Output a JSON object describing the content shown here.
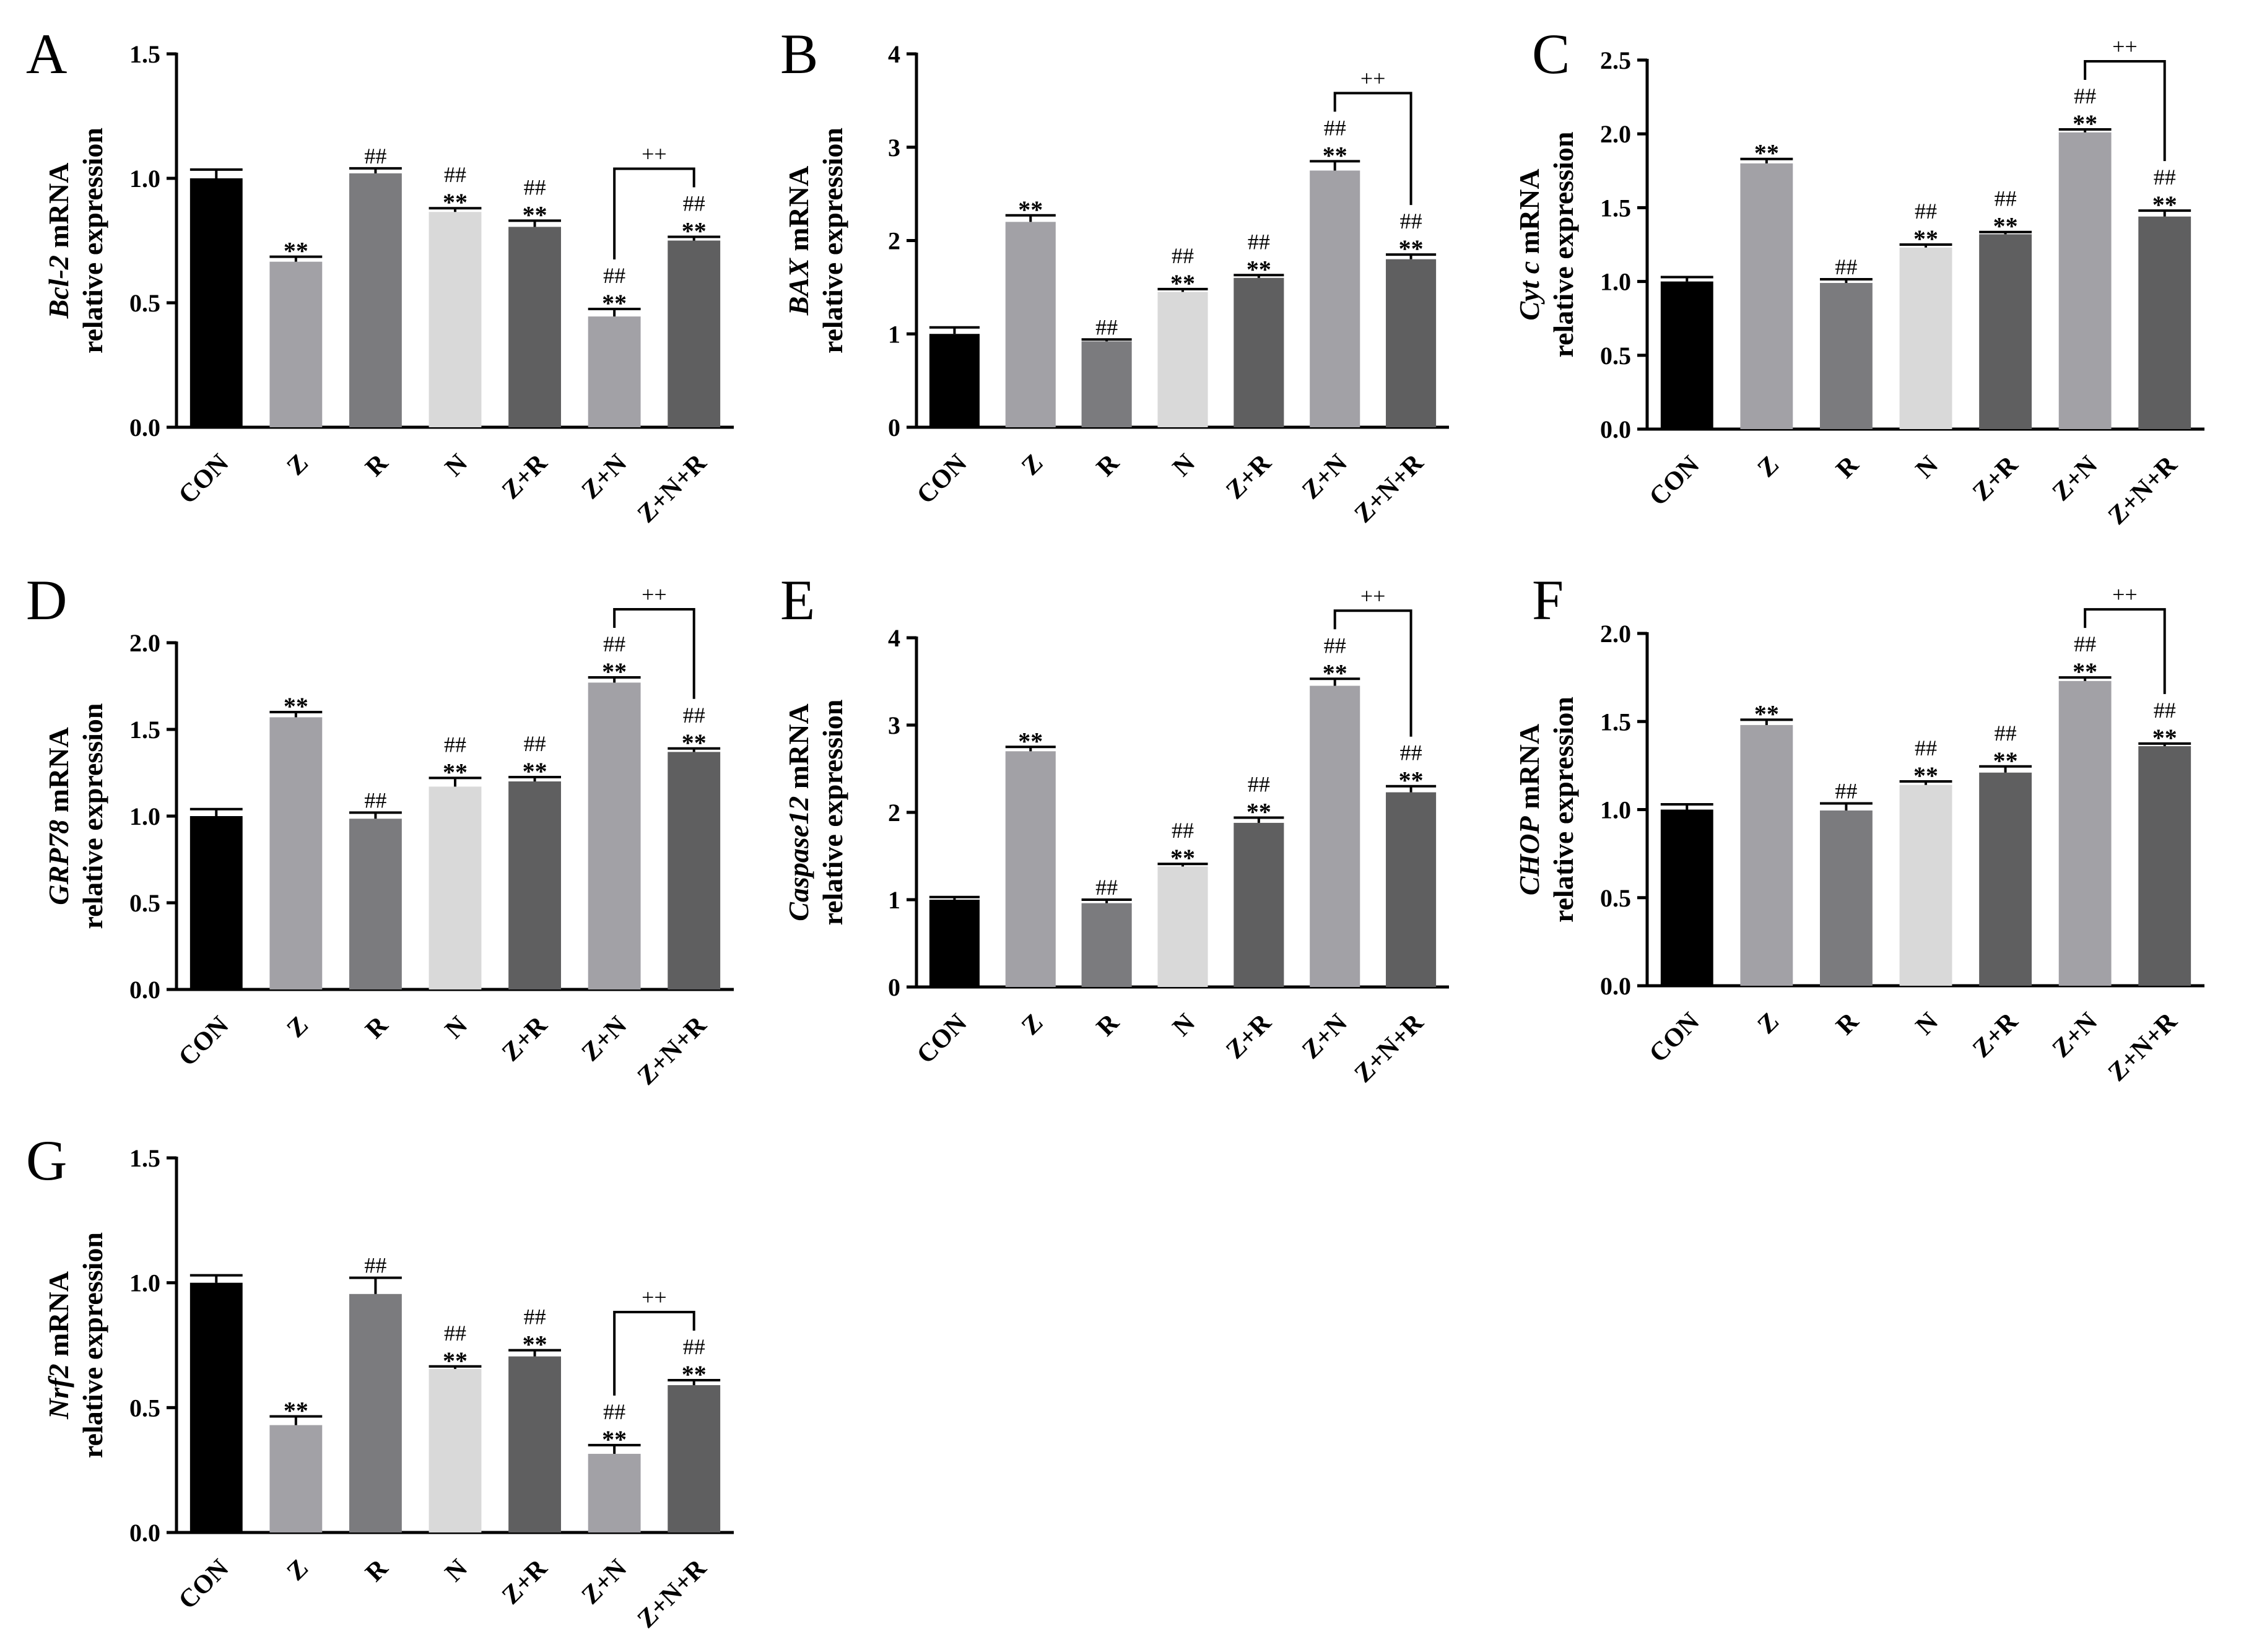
{
  "chart_data": [
    {
      "type": "bar",
      "panel": "A",
      "gene": "Bcl-2",
      "ylabel_suffix": " mRNA",
      "ylabel_line2": "relative expression",
      "categories": [
        "CON",
        "Z",
        "R",
        "N",
        "Z+R",
        "Z+N",
        "Z+N+R"
      ],
      "values": [
        1.0,
        0.665,
        1.02,
        0.865,
        0.805,
        0.445,
        0.75
      ],
      "errors": [
        0.035,
        0.02,
        0.02,
        0.015,
        0.025,
        0.03,
        0.015
      ],
      "colors": [
        "#000000",
        "#a2a1a6",
        "#7b7b7e",
        "#d9d9d9",
        "#5f5f60",
        "#a2a1a6",
        "#5f5f60"
      ],
      "star_marks": [
        "",
        "**",
        "",
        "**",
        "**",
        "**",
        "**"
      ],
      "hash_marks": [
        "",
        "",
        "##",
        "##",
        "##",
        "##",
        "##"
      ],
      "ylim": [
        0,
        1.5
      ],
      "yticks": [
        "0.0",
        "0.5",
        "1.0",
        "1.5"
      ],
      "bracket": {
        "from": 5,
        "to": 6,
        "label": "++"
      }
    },
    {
      "type": "bar",
      "panel": "B",
      "gene": "BAX",
      "ylabel_suffix": " mRNA",
      "ylabel_line2": "relative expression",
      "categories": [
        "CON",
        "Z",
        "R",
        "N",
        "Z+R",
        "Z+N",
        "Z+N+R"
      ],
      "values": [
        1.0,
        2.2,
        0.92,
        1.45,
        1.6,
        2.75,
        1.8
      ],
      "errors": [
        0.07,
        0.07,
        0.02,
        0.03,
        0.03,
        0.1,
        0.05
      ],
      "colors": [
        "#000000",
        "#a2a1a6",
        "#7b7b7e",
        "#d9d9d9",
        "#5f5f60",
        "#a2a1a6",
        "#5f5f60"
      ],
      "star_marks": [
        "",
        "**",
        "",
        "**",
        "**",
        "**",
        "**"
      ],
      "hash_marks": [
        "",
        "",
        "##",
        "##",
        "##",
        "##",
        "##"
      ],
      "ylim": [
        0,
        4
      ],
      "yticks": [
        "0",
        "1",
        "2",
        "3",
        "4"
      ],
      "bracket": {
        "from": 5,
        "to": 6,
        "label": "++"
      }
    },
    {
      "type": "bar",
      "panel": "C",
      "gene": "Cyt c",
      "ylabel_suffix": " mRNA",
      "ylabel_line2": "relative expression",
      "categories": [
        "CON",
        "Z",
        "R",
        "N",
        "Z+R",
        "Z+N",
        "Z+N+R"
      ],
      "values": [
        1.0,
        1.8,
        0.99,
        1.23,
        1.32,
        2.01,
        1.44
      ],
      "errors": [
        0.03,
        0.03,
        0.025,
        0.02,
        0.015,
        0.02,
        0.04
      ],
      "colors": [
        "#000000",
        "#a2a1a6",
        "#7b7b7e",
        "#d9d9d9",
        "#5f5f60",
        "#a2a1a6",
        "#5f5f60"
      ],
      "star_marks": [
        "",
        "**",
        "",
        "**",
        "**",
        "**",
        "**"
      ],
      "hash_marks": [
        "",
        "",
        "##",
        "##",
        "##",
        "##",
        "##"
      ],
      "ylim": [
        0,
        2.5
      ],
      "yticks": [
        "0.0",
        "0.5",
        "1.0",
        "1.5",
        "2.0",
        "2.5"
      ],
      "bracket": {
        "from": 5,
        "to": 6,
        "label": "++"
      }
    },
    {
      "type": "bar",
      "panel": "D",
      "gene": "GRP78",
      "ylabel_suffix": " mRNA",
      "ylabel_line2": "relative expression",
      "categories": [
        "CON",
        "Z",
        "R",
        "N",
        "Z+R",
        "Z+N",
        "Z+N+R"
      ],
      "values": [
        1.0,
        1.57,
        0.985,
        1.17,
        1.2,
        1.77,
        1.37
      ],
      "errors": [
        0.04,
        0.03,
        0.035,
        0.05,
        0.025,
        0.03,
        0.02
      ],
      "colors": [
        "#000000",
        "#a2a1a6",
        "#7b7b7e",
        "#d9d9d9",
        "#5f5f60",
        "#a2a1a6",
        "#5f5f60"
      ],
      "star_marks": [
        "",
        "**",
        "",
        "**",
        "**",
        "**",
        "**"
      ],
      "hash_marks": [
        "",
        "",
        "##",
        "##",
        "##",
        "##",
        "##"
      ],
      "ylim": [
        0,
        2.0
      ],
      "yticks": [
        "0.0",
        "0.5",
        "1.0",
        "1.5",
        "2.0"
      ],
      "bracket": {
        "from": 5,
        "to": 6,
        "label": "++"
      }
    },
    {
      "type": "bar",
      "panel": "E",
      "gene": "Caspase12",
      "ylabel_suffix": " mRNA",
      "ylabel_line2": "relative expression",
      "categories": [
        "CON",
        "Z",
        "R",
        "N",
        "Z+R",
        "Z+N",
        "Z+N+R"
      ],
      "values": [
        1.0,
        2.7,
        0.96,
        1.38,
        1.88,
        3.45,
        2.23
      ],
      "errors": [
        0.03,
        0.05,
        0.04,
        0.03,
        0.06,
        0.08,
        0.07
      ],
      "colors": [
        "#000000",
        "#a2a1a6",
        "#7b7b7e",
        "#d9d9d9",
        "#5f5f60",
        "#a2a1a6",
        "#5f5f60"
      ],
      "star_marks": [
        "",
        "**",
        "",
        "**",
        "**",
        "**",
        "**"
      ],
      "hash_marks": [
        "",
        "",
        "##",
        "##",
        "##",
        "##",
        "##"
      ],
      "ylim": [
        0,
        4
      ],
      "yticks": [
        "0",
        "1",
        "2",
        "3",
        "4"
      ],
      "bracket": {
        "from": 5,
        "to": 6,
        "label": "++"
      }
    },
    {
      "type": "bar",
      "panel": "F",
      "gene": "CHOP",
      "ylabel_suffix": " mRNA",
      "ylabel_line2": "relative expression",
      "categories": [
        "CON",
        "Z",
        "R",
        "N",
        "Z+R",
        "Z+N",
        "Z+N+R"
      ],
      "values": [
        1.0,
        1.48,
        0.995,
        1.14,
        1.21,
        1.73,
        1.36
      ],
      "errors": [
        0.03,
        0.03,
        0.04,
        0.02,
        0.035,
        0.02,
        0.015
      ],
      "colors": [
        "#000000",
        "#a2a1a6",
        "#7b7b7e",
        "#d9d9d9",
        "#5f5f60",
        "#a2a1a6",
        "#5f5f60"
      ],
      "star_marks": [
        "",
        "**",
        "",
        "**",
        "**",
        "**",
        "**"
      ],
      "hash_marks": [
        "",
        "",
        "##",
        "##",
        "##",
        "##",
        "##"
      ],
      "ylim": [
        0,
        2.0
      ],
      "yticks": [
        "0.0",
        "0.5",
        "1.0",
        "1.5",
        "2.0"
      ],
      "bracket": {
        "from": 5,
        "to": 6,
        "label": "++"
      }
    },
    {
      "type": "bar",
      "panel": "G",
      "gene": "Nrf2",
      "ylabel_suffix": " mRNA",
      "ylabel_line2": "relative expression",
      "categories": [
        "CON",
        "Z",
        "R",
        "N",
        "Z+R",
        "Z+N",
        "Z+N+R"
      ],
      "values": [
        1.0,
        0.43,
        0.955,
        0.655,
        0.705,
        0.315,
        0.59
      ],
      "errors": [
        0.03,
        0.035,
        0.065,
        0.01,
        0.025,
        0.035,
        0.02
      ],
      "colors": [
        "#000000",
        "#a2a1a6",
        "#7b7b7e",
        "#d9d9d9",
        "#5f5f60",
        "#a2a1a6",
        "#5f5f60"
      ],
      "star_marks": [
        "",
        "**",
        "",
        "**",
        "**",
        "**",
        "**"
      ],
      "hash_marks": [
        "",
        "",
        "##",
        "##",
        "##",
        "##",
        "##"
      ],
      "ylim": [
        0,
        1.5
      ],
      "yticks": [
        "0.0",
        "0.5",
        "1.0",
        "1.5"
      ],
      "bracket": {
        "from": 5,
        "to": 6,
        "label": "++"
      }
    }
  ]
}
